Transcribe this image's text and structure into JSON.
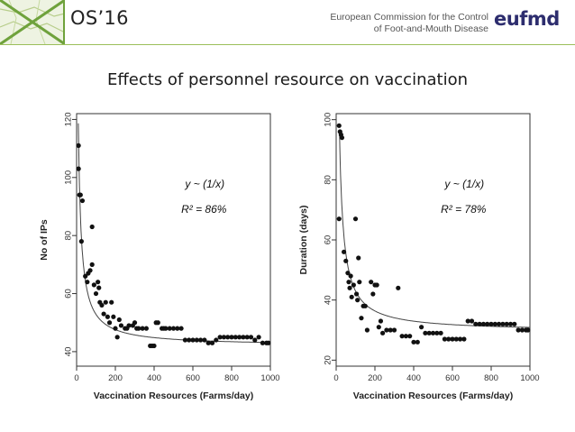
{
  "header": {
    "conference": "OS’16",
    "commission_line1": "European Commission for the Control",
    "commission_line2": "of Foot-and-Mouth Disease",
    "logo_text": "eufmd"
  },
  "title": "Effects of personnel resource on vaccination",
  "colors": {
    "accent_green": "#9bbf5a",
    "logo_navy": "#2d2d6e",
    "logo_green": "#3a8b3a"
  },
  "chart_data": [
    {
      "type": "scatter",
      "xlabel": "Vaccination Resources (Farms/day)",
      "ylabel": "No of IPs",
      "xlim": [
        0,
        1000
      ],
      "ylim": [
        35,
        122
      ],
      "x_ticks": [
        0,
        200,
        400,
        600,
        800,
        1000
      ],
      "y_ticks": [
        40,
        60,
        80,
        100,
        120
      ],
      "annotation_model": "y ~ (1/x)",
      "annotation_r2": "R² = 86%",
      "fit": {
        "a": 42.0,
        "b": 1150.0,
        "c": 6.0
      },
      "points": [
        [
          10,
          111
        ],
        [
          10,
          103
        ],
        [
          15,
          94
        ],
        [
          20,
          94
        ],
        [
          25,
          78
        ],
        [
          30,
          92
        ],
        [
          45,
          66
        ],
        [
          55,
          64
        ],
        [
          60,
          67
        ],
        [
          70,
          68
        ],
        [
          80,
          83
        ],
        [
          80,
          70
        ],
        [
          90,
          63
        ],
        [
          100,
          60
        ],
        [
          110,
          64
        ],
        [
          115,
          62
        ],
        [
          120,
          57
        ],
        [
          130,
          56
        ],
        [
          140,
          53
        ],
        [
          150,
          57
        ],
        [
          160,
          52
        ],
        [
          170,
          50
        ],
        [
          180,
          57
        ],
        [
          190,
          52
        ],
        [
          200,
          48
        ],
        [
          210,
          45
        ],
        [
          220,
          51
        ],
        [
          230,
          49
        ],
        [
          250,
          48
        ],
        [
          260,
          48
        ],
        [
          270,
          49
        ],
        [
          290,
          49
        ],
        [
          300,
          50
        ],
        [
          310,
          48
        ],
        [
          320,
          48
        ],
        [
          340,
          48
        ],
        [
          360,
          48
        ],
        [
          380,
          42
        ],
        [
          390,
          42
        ],
        [
          400,
          42
        ],
        [
          410,
          50
        ],
        [
          420,
          50
        ],
        [
          440,
          48
        ],
        [
          450,
          48
        ],
        [
          460,
          48
        ],
        [
          480,
          48
        ],
        [
          500,
          48
        ],
        [
          520,
          48
        ],
        [
          540,
          48
        ],
        [
          560,
          44
        ],
        [
          580,
          44
        ],
        [
          600,
          44
        ],
        [
          620,
          44
        ],
        [
          640,
          44
        ],
        [
          660,
          44
        ],
        [
          680,
          43
        ],
        [
          700,
          43
        ],
        [
          720,
          44
        ],
        [
          740,
          45
        ],
        [
          760,
          45
        ],
        [
          780,
          45
        ],
        [
          800,
          45
        ],
        [
          820,
          45
        ],
        [
          840,
          45
        ],
        [
          860,
          45
        ],
        [
          880,
          45
        ],
        [
          900,
          45
        ],
        [
          920,
          44
        ],
        [
          940,
          45
        ],
        [
          960,
          43
        ],
        [
          980,
          43
        ],
        [
          990,
          43
        ]
      ]
    },
    {
      "type": "scatter",
      "xlabel": "Vaccination Resources (Farms/day)",
      "ylabel": "Duration (days)",
      "xlim": [
        0,
        1000
      ],
      "ylim": [
        18,
        102
      ],
      "x_ticks": [
        0,
        200,
        400,
        600,
        800,
        1000
      ],
      "y_ticks": [
        20,
        40,
        60,
        80,
        100
      ],
      "annotation_model": "y ~ (1/x)",
      "annotation_r2": "R² = 78%",
      "fit": {
        "a": 29.5,
        "b": 1400.0,
        "c": 4.0
      },
      "points": [
        [
          15,
          98
        ],
        [
          20,
          96
        ],
        [
          25,
          95
        ],
        [
          30,
          94
        ],
        [
          15,
          67
        ],
        [
          40,
          56
        ],
        [
          50,
          53
        ],
        [
          60,
          49
        ],
        [
          65,
          46
        ],
        [
          70,
          44
        ],
        [
          75,
          48
        ],
        [
          80,
          41
        ],
        [
          90,
          45
        ],
        [
          100,
          67
        ],
        [
          105,
          42
        ],
        [
          110,
          40
        ],
        [
          115,
          54
        ],
        [
          120,
          46
        ],
        [
          130,
          34
        ],
        [
          140,
          38
        ],
        [
          150,
          38
        ],
        [
          160,
          30
        ],
        [
          180,
          46
        ],
        [
          190,
          42
        ],
        [
          200,
          45
        ],
        [
          210,
          45
        ],
        [
          220,
          31
        ],
        [
          230,
          33
        ],
        [
          240,
          29
        ],
        [
          260,
          30
        ],
        [
          280,
          30
        ],
        [
          300,
          30
        ],
        [
          320,
          44
        ],
        [
          340,
          28
        ],
        [
          360,
          28
        ],
        [
          380,
          28
        ],
        [
          400,
          26
        ],
        [
          420,
          26
        ],
        [
          440,
          31
        ],
        [
          460,
          29
        ],
        [
          480,
          29
        ],
        [
          500,
          29
        ],
        [
          520,
          29
        ],
        [
          540,
          29
        ],
        [
          560,
          27
        ],
        [
          580,
          27
        ],
        [
          600,
          27
        ],
        [
          620,
          27
        ],
        [
          640,
          27
        ],
        [
          660,
          27
        ],
        [
          680,
          33
        ],
        [
          700,
          33
        ],
        [
          720,
          32
        ],
        [
          740,
          32
        ],
        [
          760,
          32
        ],
        [
          780,
          32
        ],
        [
          800,
          32
        ],
        [
          820,
          32
        ],
        [
          840,
          32
        ],
        [
          860,
          32
        ],
        [
          880,
          32
        ],
        [
          900,
          32
        ],
        [
          920,
          32
        ],
        [
          940,
          30
        ],
        [
          960,
          30
        ],
        [
          980,
          30
        ],
        [
          990,
          30
        ]
      ]
    }
  ]
}
